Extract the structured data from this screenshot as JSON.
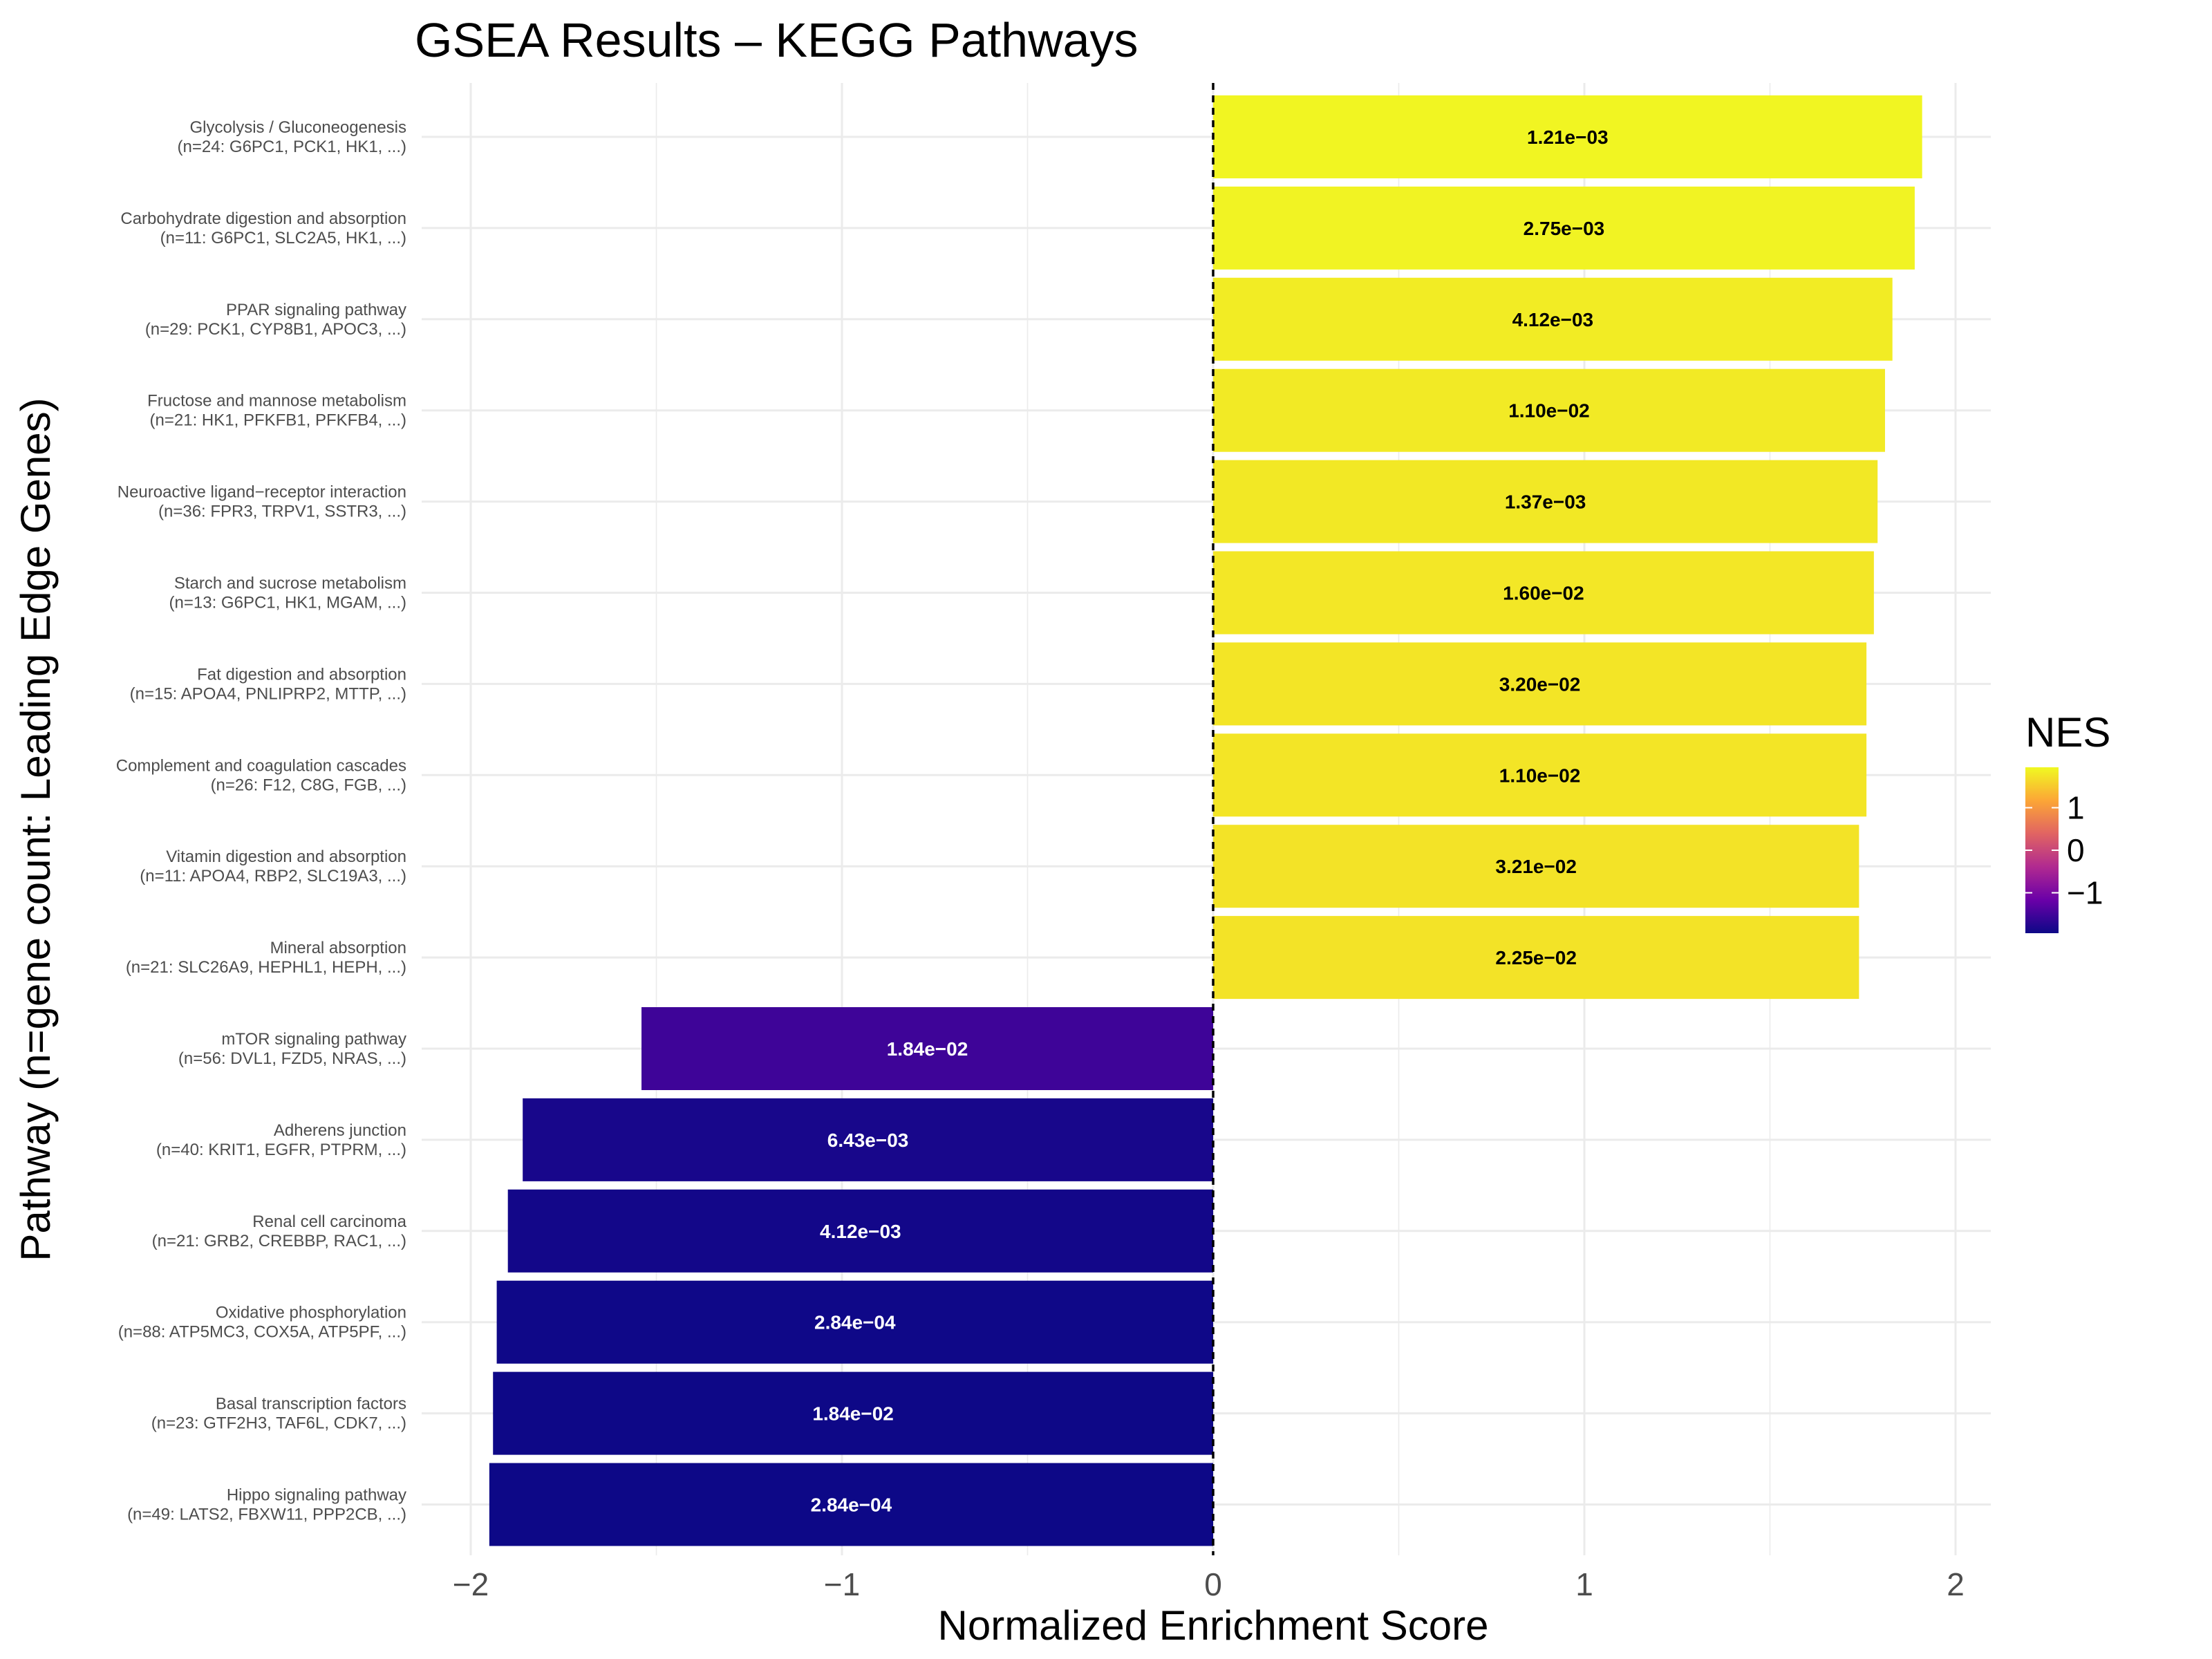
{
  "chart_data": {
    "type": "bar",
    "orientation": "horizontal",
    "title": "GSEA Results – KEGG Pathways",
    "xlabel": "Normalized Enrichment Score",
    "ylabel": "Pathway (n=gene count: Leading Edge Genes)",
    "xlim": [
      -2.1,
      2.1
    ],
    "xticks": [
      -2,
      -1,
      0,
      1,
      2
    ],
    "xtick_labels": [
      "−2",
      "−1",
      "0",
      "1",
      "2"
    ],
    "grid": true,
    "reference_line": {
      "x": 0,
      "style": "dashed"
    },
    "legend": {
      "title": "NES",
      "placement": "right",
      "type": "colorbar",
      "ticks": [
        1,
        0,
        -1
      ],
      "tick_labels": [
        "1",
        "0",
        "−1"
      ],
      "range": [
        -1.95,
        1.95
      ],
      "colors": [
        "#0d0887",
        "#6a00a8",
        "#b12a90",
        "#e16462",
        "#fca636",
        "#f0f921"
      ]
    },
    "bars": [
      {
        "name": "Glycolysis / Gluconeogenesis",
        "genes": "(n=24: G6PC1, PCK1, HK1, ...)",
        "nes": 1.91,
        "padj": "1.21e−03"
      },
      {
        "name": "Carbohydrate digestion and absorption",
        "genes": "(n=11: G6PC1, SLC2A5, HK1, ...)",
        "nes": 1.89,
        "padj": "2.75e−03"
      },
      {
        "name": "PPAR signaling pathway",
        "genes": "(n=29: PCK1, CYP8B1, APOC3, ...)",
        "nes": 1.83,
        "padj": "4.12e−03"
      },
      {
        "name": "Fructose and mannose metabolism",
        "genes": "(n=21: HK1, PFKFB1, PFKFB4, ...)",
        "nes": 1.81,
        "padj": "1.10e−02"
      },
      {
        "name": "Neuroactive ligand−receptor interaction",
        "genes": "(n=36: FPR3, TRPV1, SSTR3, ...)",
        "nes": 1.79,
        "padj": "1.37e−03"
      },
      {
        "name": "Starch and sucrose metabolism",
        "genes": "(n=13: G6PC1, HK1, MGAM, ...)",
        "nes": 1.78,
        "padj": "1.60e−02"
      },
      {
        "name": "Fat digestion and absorption",
        "genes": "(n=15: APOA4, PNLIPRP2, MTTP, ...)",
        "nes": 1.76,
        "padj": "3.20e−02"
      },
      {
        "name": "Complement and coagulation cascades",
        "genes": "(n=26: F12, C8G, FGB, ...)",
        "nes": 1.76,
        "padj": "1.10e−02"
      },
      {
        "name": "Vitamin digestion and absorption",
        "genes": "(n=11: APOA4, RBP2, SLC19A3, ...)",
        "nes": 1.74,
        "padj": "3.21e−02"
      },
      {
        "name": "Mineral absorption",
        "genes": "(n=21: SLC26A9, HEPHL1, HEPH, ...)",
        "nes": 1.74,
        "padj": "2.25e−02"
      },
      {
        "name": "mTOR signaling pathway",
        "genes": "(n=56: DVL1, FZD5, NRAS, ...)",
        "nes": -1.54,
        "padj": "1.84e−02"
      },
      {
        "name": "Adherens junction",
        "genes": "(n=40: KRIT1, EGFR, PTPRM, ...)",
        "nes": -1.86,
        "padj": "6.43e−03"
      },
      {
        "name": "Renal cell carcinoma",
        "genes": "(n=21: GRB2, CREBBP, RAC1, ...)",
        "nes": -1.9,
        "padj": "4.12e−03"
      },
      {
        "name": "Oxidative phosphorylation",
        "genes": "(n=88: ATP5MC3, COX5A, ATP5PF, ...)",
        "nes": -1.93,
        "padj": "2.84e−04"
      },
      {
        "name": "Basal transcription factors",
        "genes": "(n=23: GTF2H3, TAF6L, CDK7, ...)",
        "nes": -1.94,
        "padj": "1.84e−02"
      },
      {
        "name": "Hippo signaling pathway",
        "genes": "(n=49: LATS2, FBXW11, PPP2CB, ...)",
        "nes": -1.95,
        "padj": "2.84e−04"
      }
    ]
  }
}
